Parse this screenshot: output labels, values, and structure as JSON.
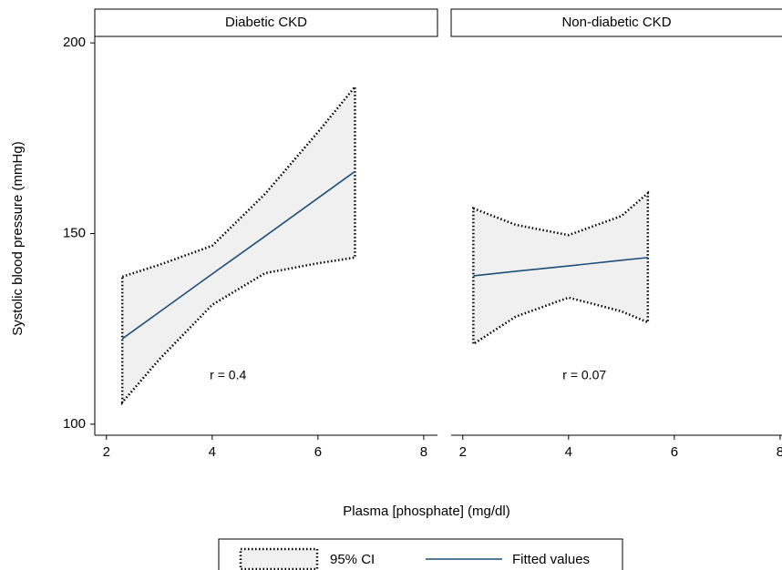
{
  "x_label": "Plasma [phosphate] (mg/dl)",
  "y_label": "Systolic blood pressure (mmHg)",
  "legend": [
    "95% CI",
    "Fitted values"
  ],
  "chart_data": [
    {
      "type": "line",
      "title": "Diabetic CKD",
      "annotation": "r = 0.4",
      "x": [
        2.3,
        3,
        4,
        5,
        6,
        6.7
      ],
      "series": [
        {
          "color": "#f0f0f0",
          "lower": [
            105.7,
            117,
            131.3,
            139.6,
            142.2,
            143.7
          ],
          "upper": [
            138.7,
            141.8,
            146.8,
            160.4,
            176.6,
            188.5
          ]
        },
        {
          "color": "#1f4e79",
          "values": [
            122.4,
            129.4,
            139.4,
            149.3,
            159.3,
            166.3
          ]
        }
      ],
      "xlim": [
        1.78,
        8.26
      ],
      "xticks": [
        2,
        4,
        6,
        8
      ],
      "ylim": [
        97.1,
        201.7
      ],
      "yticks": [
        100,
        150,
        200
      ]
    },
    {
      "type": "line",
      "title": "Non-diabetic CKD",
      "annotation": "r = 0.07",
      "x": [
        2.2,
        3,
        4,
        5,
        5.5
      ],
      "series": [
        {
          "color": "#f0f0f0",
          "lower": [
            121,
            128.2,
            133.2,
            129.6,
            126.7
          ],
          "upper": [
            156.6,
            152.3,
            149.6,
            154.6,
            160.6
          ]
        },
        {
          "color": "#1f4e79",
          "values": [
            138.9,
            140.1,
            141.5,
            143,
            143.7
          ]
        }
      ],
      "xlim": [
        1.78,
        8.26
      ],
      "xticks": [
        2,
        4,
        6,
        8
      ],
      "ylim": [
        97.1,
        201.7
      ]
    }
  ]
}
